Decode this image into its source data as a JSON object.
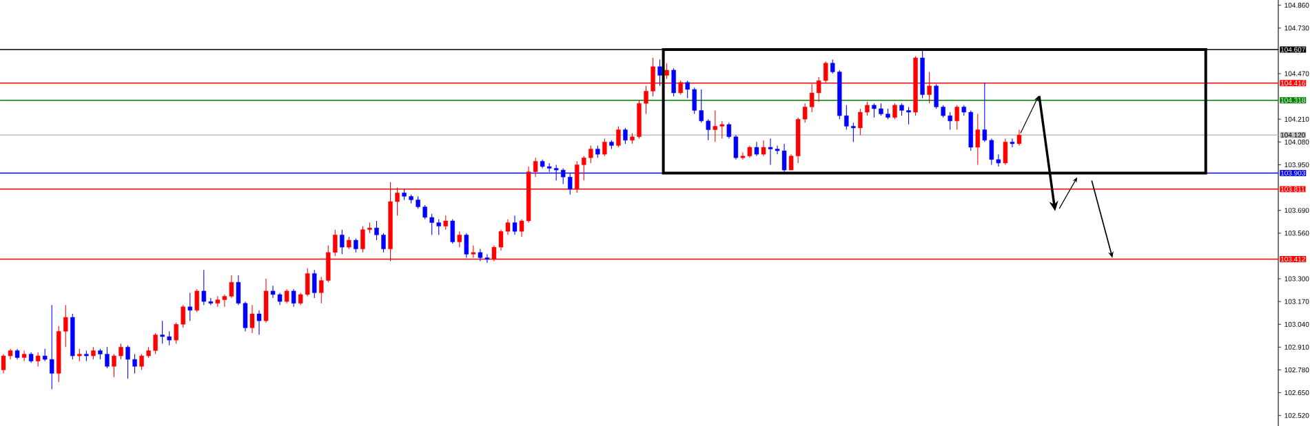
{
  "chart_data": {
    "type": "candlestick",
    "tick_labels": "y",
    "categories": [
      null,
      null,
      null,
      null,
      null,
      null,
      null,
      null,
      null,
      null,
      null,
      null,
      null,
      null,
      null,
      null,
      null,
      null,
      null,
      null,
      null,
      null,
      null,
      null,
      null,
      null,
      null,
      null,
      null,
      null,
      null,
      null,
      null,
      null,
      null,
      null,
      null,
      null,
      null,
      null,
      null,
      null,
      null,
      null,
      null,
      null,
      null,
      null,
      null,
      null,
      null,
      null,
      null,
      null,
      null,
      null,
      null,
      null,
      null,
      null,
      null,
      null,
      null,
      null,
      null,
      null,
      null,
      null,
      null,
      null,
      null,
      null,
      null,
      null,
      null,
      null,
      null,
      null,
      null,
      null,
      null,
      null,
      null,
      null,
      null,
      null,
      null,
      null,
      null,
      null,
      null,
      null,
      null,
      null,
      null,
      null,
      null,
      null,
      null,
      null,
      null,
      null,
      null,
      null,
      null,
      null,
      null,
      null,
      null,
      null,
      null,
      null,
      null,
      null,
      null,
      null,
      null,
      null,
      null,
      null,
      null,
      null,
      null,
      null,
      null,
      null,
      null,
      null,
      null,
      null,
      null,
      null,
      null,
      null,
      null,
      null,
      null,
      null,
      null,
      null,
      null,
      null,
      null,
      null,
      null,
      null,
      null,
      null,
      null,
      null,
      null,
      null,
      null,
      null,
      null,
      null,
      null,
      null,
      null,
      null,
      null,
      null,
      null,
      null,
      null,
      null,
      null,
      null,
      null,
      null,
      null,
      null,
      null,
      null,
      null,
      null,
      null,
      null,
      null,
      null,
      null,
      null,
      null,
      null,
      null
    ],
    "ohlc": [
      [
        102.78,
        102.87,
        102.76,
        102.86
      ],
      [
        102.86,
        102.9,
        102.84,
        102.89
      ],
      [
        102.89,
        102.9,
        102.84,
        102.85
      ],
      [
        102.85,
        102.89,
        102.83,
        102.87
      ],
      [
        102.87,
        102.88,
        102.82,
        102.83
      ],
      [
        102.83,
        102.88,
        102.8,
        102.86
      ],
      [
        102.86,
        102.9,
        102.83,
        102.84
      ],
      [
        102.84,
        103.15,
        102.67,
        102.76
      ],
      [
        102.76,
        103.03,
        102.71,
        103.0
      ],
      [
        103.0,
        103.15,
        102.91,
        103.08
      ],
      [
        103.08,
        103.1,
        102.84,
        102.86
      ],
      [
        102.86,
        102.9,
        102.83,
        102.87
      ],
      [
        102.87,
        102.89,
        102.83,
        102.86
      ],
      [
        102.86,
        102.91,
        102.84,
        102.89
      ],
      [
        102.89,
        102.9,
        102.84,
        102.87
      ],
      [
        102.87,
        102.91,
        102.79,
        102.8
      ],
      [
        102.8,
        102.87,
        102.74,
        102.86
      ],
      [
        102.86,
        102.93,
        102.84,
        102.91
      ],
      [
        102.91,
        102.92,
        102.73,
        102.84
      ],
      [
        102.84,
        102.87,
        102.76,
        102.8
      ],
      [
        102.8,
        102.87,
        102.78,
        102.86
      ],
      [
        102.86,
        102.91,
        102.85,
        102.89
      ],
      [
        102.89,
        102.99,
        102.87,
        102.98
      ],
      [
        102.98,
        103.06,
        102.93,
        102.97
      ],
      [
        102.97,
        103.0,
        102.92,
        102.95
      ],
      [
        102.95,
        103.05,
        102.93,
        103.04
      ],
      [
        103.04,
        103.15,
        103.02,
        103.14
      ],
      [
        103.14,
        103.22,
        103.06,
        103.12
      ],
      [
        103.12,
        103.24,
        103.11,
        103.23
      ],
      [
        103.23,
        103.35,
        103.15,
        103.17
      ],
      [
        103.17,
        103.19,
        103.15,
        103.16
      ],
      [
        103.16,
        103.2,
        103.14,
        103.18
      ],
      [
        103.18,
        103.21,
        103.14,
        103.2
      ],
      [
        103.2,
        103.32,
        103.19,
        103.28
      ],
      [
        103.28,
        103.32,
        103.15,
        103.16
      ],
      [
        103.16,
        103.17,
        103.0,
        103.02
      ],
      [
        103.02,
        103.15,
        102.99,
        103.1
      ],
      [
        103.1,
        103.12,
        102.98,
        103.06
      ],
      [
        103.06,
        103.3,
        103.05,
        103.23
      ],
      [
        103.23,
        103.26,
        103.19,
        103.21
      ],
      [
        103.21,
        103.22,
        103.15,
        103.17
      ],
      [
        103.17,
        103.24,
        103.16,
        103.23
      ],
      [
        103.23,
        103.24,
        103.14,
        103.16
      ],
      [
        103.16,
        103.22,
        103.15,
        103.21
      ],
      [
        103.21,
        103.36,
        103.2,
        103.33
      ],
      [
        103.33,
        103.35,
        103.19,
        103.22
      ],
      [
        103.22,
        103.31,
        103.16,
        103.29
      ],
      [
        103.29,
        103.49,
        103.28,
        103.45
      ],
      [
        103.45,
        103.58,
        103.43,
        103.55
      ],
      [
        103.55,
        103.58,
        103.44,
        103.48
      ],
      [
        103.48,
        103.54,
        103.47,
        103.52
      ],
      [
        103.52,
        103.53,
        103.45,
        103.47
      ],
      [
        103.47,
        103.6,
        103.45,
        103.58
      ],
      [
        103.58,
        103.62,
        103.56,
        103.59
      ],
      [
        103.59,
        103.63,
        103.52,
        103.55
      ],
      [
        103.55,
        103.56,
        103.45,
        103.47
      ],
      [
        103.47,
        103.85,
        103.4,
        103.74
      ],
      [
        103.74,
        103.82,
        103.66,
        103.79
      ],
      [
        103.79,
        103.81,
        103.75,
        103.77
      ],
      [
        103.77,
        103.78,
        103.73,
        103.75
      ],
      [
        103.75,
        103.77,
        103.7,
        103.71
      ],
      [
        103.71,
        103.72,
        103.64,
        103.65
      ],
      [
        103.65,
        103.67,
        103.55,
        103.62
      ],
      [
        103.62,
        103.64,
        103.55,
        103.6
      ],
      [
        103.6,
        103.66,
        103.58,
        103.63
      ],
      [
        103.63,
        103.64,
        103.5,
        103.51
      ],
      [
        103.51,
        103.57,
        103.48,
        103.55
      ],
      [
        103.55,
        103.56,
        103.42,
        103.44
      ],
      [
        103.44,
        103.49,
        103.42,
        103.45
      ],
      [
        103.45,
        103.47,
        103.4,
        103.42
      ],
      [
        103.42,
        103.44,
        103.39,
        103.41
      ],
      [
        103.41,
        103.49,
        103.4,
        103.48
      ],
      [
        103.48,
        103.58,
        103.46,
        103.57
      ],
      [
        103.57,
        103.64,
        103.55,
        103.62
      ],
      [
        103.62,
        103.66,
        103.55,
        103.57
      ],
      [
        103.57,
        103.64,
        103.54,
        103.63
      ],
      [
        103.63,
        103.94,
        103.62,
        103.91
      ],
      [
        103.91,
        103.99,
        103.88,
        103.97
      ],
      [
        103.97,
        103.98,
        103.93,
        103.94
      ],
      [
        103.94,
        103.96,
        103.91,
        103.93
      ],
      [
        103.93,
        103.95,
        103.86,
        103.92
      ],
      [
        103.92,
        103.93,
        103.84,
        103.88
      ],
      [
        103.88,
        103.9,
        103.78,
        103.81
      ],
      [
        103.81,
        103.97,
        103.79,
        103.95
      ],
      [
        103.95,
        104.0,
        103.86,
        103.99
      ],
      [
        103.99,
        104.06,
        103.96,
        104.04
      ],
      [
        104.04,
        104.06,
        103.99,
        104.01
      ],
      [
        104.01,
        104.1,
        104.0,
        104.08
      ],
      [
        104.08,
        104.09,
        104.04,
        104.06
      ],
      [
        104.06,
        104.17,
        104.05,
        104.15
      ],
      [
        104.15,
        104.16,
        104.07,
        104.09
      ],
      [
        104.09,
        104.13,
        104.07,
        104.11
      ],
      [
        104.11,
        104.32,
        104.1,
        104.3
      ],
      [
        104.3,
        104.4,
        104.24,
        104.37
      ],
      [
        104.37,
        104.56,
        104.34,
        104.51
      ],
      [
        104.51,
        104.55,
        104.4,
        104.46
      ],
      [
        104.46,
        104.53,
        104.44,
        104.49
      ],
      [
        104.49,
        104.5,
        104.34,
        104.36
      ],
      [
        104.36,
        104.43,
        104.35,
        104.42
      ],
      [
        104.42,
        104.43,
        104.33,
        104.38
      ],
      [
        104.38,
        104.39,
        104.24,
        104.26
      ],
      [
        104.26,
        104.38,
        104.19,
        104.2
      ],
      [
        104.2,
        104.21,
        104.09,
        104.15
      ],
      [
        104.15,
        104.26,
        104.08,
        104.17
      ],
      [
        104.17,
        104.2,
        104.1,
        104.18
      ],
      [
        104.18,
        104.19,
        104.1,
        104.11
      ],
      [
        104.11,
        104.12,
        103.98,
        103.99
      ],
      [
        103.99,
        104.02,
        103.98,
        104.0
      ],
      [
        104.0,
        104.06,
        103.99,
        104.05
      ],
      [
        104.05,
        104.08,
        104.0,
        104.01
      ],
      [
        104.01,
        104.09,
        104.0,
        104.05
      ],
      [
        104.05,
        104.1,
        103.95,
        104.04
      ],
      [
        104.04,
        104.06,
        104.01,
        104.03
      ],
      [
        104.03,
        104.07,
        103.91,
        103.92
      ],
      [
        103.92,
        104.01,
        103.92,
        104.0
      ],
      [
        104.0,
        104.22,
        103.96,
        104.21
      ],
      [
        104.21,
        104.3,
        104.19,
        104.28
      ],
      [
        104.28,
        104.41,
        104.25,
        104.36
      ],
      [
        104.36,
        104.45,
        104.31,
        104.43
      ],
      [
        104.43,
        104.54,
        104.42,
        104.53
      ],
      [
        104.53,
        104.55,
        104.47,
        104.48
      ],
      [
        104.48,
        104.49,
        104.21,
        104.23
      ],
      [
        104.23,
        104.29,
        104.15,
        104.17
      ],
      [
        104.17,
        104.19,
        104.08,
        104.16
      ],
      [
        104.16,
        104.27,
        104.12,
        104.25
      ],
      [
        104.25,
        104.31,
        104.23,
        104.29
      ],
      [
        104.29,
        104.3,
        104.22,
        104.27
      ],
      [
        104.27,
        104.3,
        104.23,
        104.24
      ],
      [
        104.24,
        104.27,
        104.21,
        104.22
      ],
      [
        104.22,
        104.3,
        104.21,
        104.29
      ],
      [
        104.29,
        104.3,
        104.23,
        104.26
      ],
      [
        104.26,
        104.28,
        104.18,
        104.25
      ],
      [
        104.25,
        104.57,
        104.23,
        104.56
      ],
      [
        104.56,
        104.61,
        104.33,
        104.35
      ],
      [
        104.35,
        104.48,
        104.3,
        104.4
      ],
      [
        104.4,
        104.41,
        104.27,
        104.28
      ],
      [
        104.28,
        104.29,
        104.22,
        104.23
      ],
      [
        104.23,
        104.25,
        104.15,
        104.2
      ],
      [
        104.2,
        104.29,
        104.15,
        104.28
      ],
      [
        104.28,
        104.29,
        104.23,
        104.25
      ],
      [
        104.25,
        104.26,
        104.03,
        104.05
      ],
      [
        104.05,
        104.24,
        103.95,
        104.15
      ],
      [
        104.15,
        104.42,
        104.08,
        104.09
      ],
      [
        104.09,
        104.1,
        103.95,
        103.98
      ],
      [
        103.98,
        104.01,
        103.94,
        103.96
      ],
      [
        103.96,
        104.1,
        103.95,
        104.08
      ],
      [
        104.08,
        104.1,
        104.05,
        104.07
      ],
      [
        104.07,
        104.15,
        104.06,
        104.12
      ],
      null,
      null,
      null,
      null,
      null,
      null,
      null,
      null,
      null,
      null,
      null,
      null,
      null,
      null,
      null,
      null,
      null,
      null,
      null,
      null,
      null,
      null,
      null,
      null,
      null,
      null,
      null,
      null,
      null,
      null,
      null,
      null,
      null,
      null,
      null,
      null,
      null
    ],
    "colors": [
      "#ff0000",
      "#ff0000",
      "#0000ff",
      "#ff0000",
      "#0000ff",
      "#ff0000",
      "#0000ff",
      "#0000ff",
      "#ff0000",
      "#ff0000",
      "#0000ff",
      "#ff0000",
      "#0000ff",
      "#ff0000",
      "#0000ff",
      "#0000ff",
      "#ff0000",
      "#ff0000",
      "#0000ff",
      "#0000ff",
      "#ff0000",
      "#ff0000",
      "#ff0000",
      "#0000ff",
      "#0000ff",
      "#ff0000",
      "#ff0000",
      "#0000ff",
      "#ff0000",
      "#0000ff",
      "#0000ff",
      "#ff0000",
      "#ff0000",
      "#ff0000",
      "#0000ff",
      "#0000ff",
      "#ff0000",
      "#0000ff",
      "#ff0000",
      "#0000ff",
      "#0000ff",
      "#ff0000",
      "#0000ff",
      "#ff0000",
      "#ff0000",
      "#0000ff",
      "#ff0000",
      "#ff0000",
      "#ff0000",
      "#0000ff",
      "#ff0000",
      "#0000ff",
      "#ff0000",
      "#ff0000",
      "#0000ff",
      "#0000ff",
      "#ff0000",
      "#ff0000",
      "#0000ff",
      "#0000ff",
      "#0000ff",
      "#0000ff",
      "#0000ff",
      "#0000ff",
      "#ff0000",
      "#0000ff",
      "#ff0000",
      "#0000ff",
      "#ff0000",
      "#0000ff",
      "#0000ff",
      "#ff0000",
      "#ff0000",
      "#ff0000",
      "#0000ff",
      "#ff0000",
      "#ff0000",
      "#ff0000",
      "#0000ff",
      "#0000ff",
      "#0000ff",
      "#0000ff",
      "#0000ff",
      "#ff0000",
      "#ff0000",
      "#ff0000",
      "#0000ff",
      "#ff0000",
      "#0000ff",
      "#ff0000",
      "#0000ff",
      "#ff0000",
      "#ff0000",
      "#ff0000",
      "#ff0000",
      "#0000ff",
      "#ff0000",
      "#0000ff",
      "#ff0000",
      "#0000ff",
      "#0000ff",
      "#0000ff",
      "#0000ff",
      "#ff0000",
      "#ff0000",
      "#0000ff",
      "#0000ff",
      "#ff0000",
      "#ff0000",
      "#0000ff",
      "#ff0000",
      "#0000ff",
      "#0000ff",
      "#0000ff",
      "#ff0000",
      "#ff0000",
      "#ff0000",
      "#ff0000",
      "#ff0000",
      "#ff0000",
      "#0000ff",
      "#0000ff",
      "#0000ff",
      "#0000ff",
      "#ff0000",
      "#ff0000",
      "#0000ff",
      "#0000ff",
      "#0000ff",
      "#ff0000",
      "#0000ff",
      "#0000ff",
      "#ff0000",
      "#0000ff",
      "#ff0000",
      "#0000ff",
      "#0000ff",
      "#0000ff",
      "#ff0000",
      "#0000ff",
      "#0000ff",
      "#ff0000",
      "#0000ff",
      "#0000ff",
      "#0000ff",
      "#ff0000",
      "#0000ff",
      "#ff0000",
      null,
      null,
      null,
      null,
      null,
      null,
      null,
      null,
      null,
      null,
      null,
      null,
      null,
      null,
      null,
      null,
      null,
      null,
      null,
      null,
      null,
      null,
      null,
      null,
      null,
      null,
      null,
      null,
      null,
      null,
      null,
      null,
      null,
      null,
      null,
      null,
      null
    ],
    "ylim": [
      102.46,
      104.89
    ],
    "yticks": [
      {
        "value": 104.86,
        "label": "104.860"
      },
      {
        "value": 104.73,
        "label": "104.730"
      },
      {
        "value": 104.47,
        "label": "104.470"
      },
      {
        "value": 104.21,
        "label": "104.210"
      },
      {
        "value": 104.08,
        "label": "104.080"
      },
      {
        "value": 103.95,
        "label": "103.950"
      },
      {
        "value": 103.69,
        "label": "103.690"
      },
      {
        "value": 103.56,
        "label": "103.560"
      },
      {
        "value": 103.3,
        "label": "103.300"
      },
      {
        "value": 103.17,
        "label": "103.170"
      },
      {
        "value": 103.04,
        "label": "103.040"
      },
      {
        "value": 102.91,
        "label": "102.910"
      },
      {
        "value": 102.78,
        "label": "102.780"
      },
      {
        "value": 102.65,
        "label": "102.650"
      },
      {
        "value": 102.52,
        "label": "102.520"
      }
    ],
    "ref_lines": [
      {
        "axis": "y",
        "value": 104.607,
        "label": "104.607",
        "color": "#000000"
      },
      {
        "axis": "y",
        "value": 104.416,
        "label": "104.416",
        "color": "#ff0000"
      },
      {
        "axis": "y",
        "value": 104.318,
        "label": "104.318",
        "color": "#008000"
      },
      {
        "axis": "y",
        "value": 104.12,
        "label": "104.120",
        "color": "#c0c0c0"
      },
      {
        "axis": "y",
        "value": 103.903,
        "label": "103.903",
        "color": "#0000ff"
      },
      {
        "axis": "y",
        "value": 103.811,
        "label": "103.811",
        "color": "#ff0000"
      },
      {
        "axis": "y",
        "value": 103.412,
        "label": "103.412",
        "color": "#ff0000"
      }
    ]
  }
}
